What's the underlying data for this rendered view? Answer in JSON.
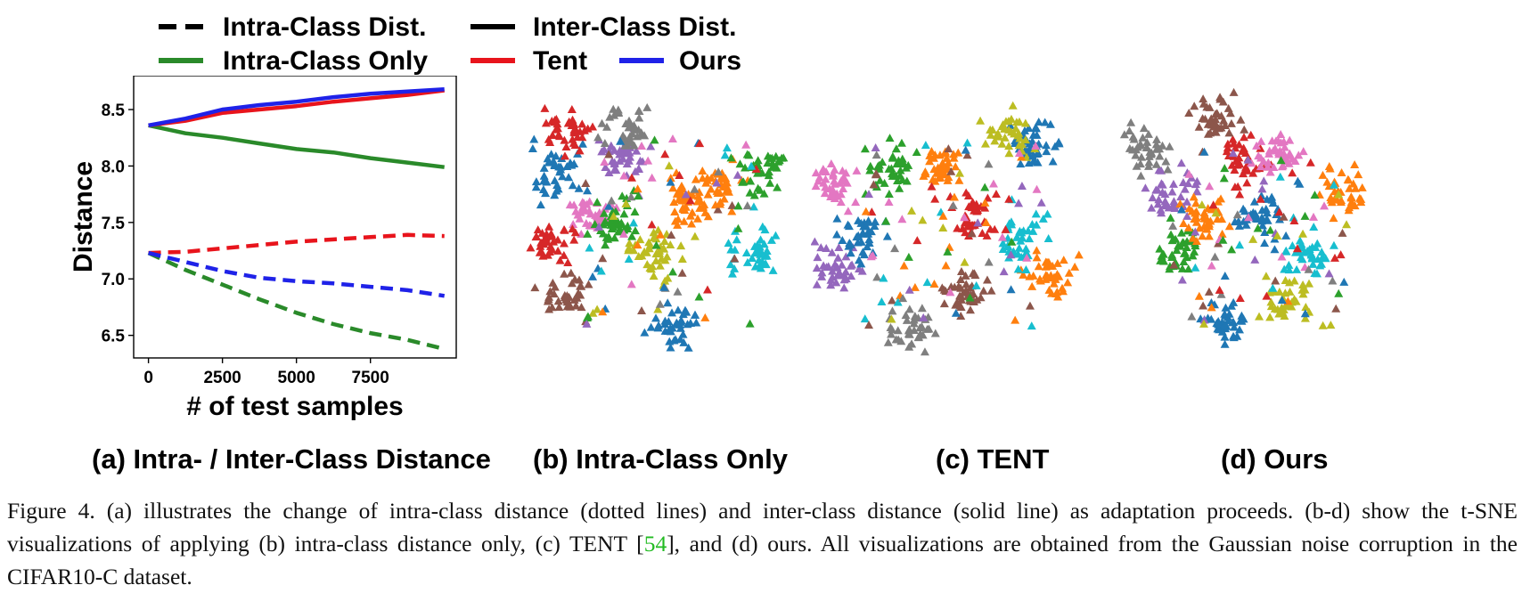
{
  "legend": {
    "intra_dist": "Intra-Class Dist.",
    "inter_dist": "Inter-Class Dist.",
    "intra_only": "Intra-Class Only",
    "tent": "Tent",
    "ours": "Ours"
  },
  "colors": {
    "intra_only": "#2a8a2a",
    "tent": "#e8141c",
    "ours": "#1f22e8",
    "tsne_palette": [
      "#1f77b4",
      "#ff7f0e",
      "#2ca02c",
      "#d62728",
      "#9467bd",
      "#8c564b",
      "#e377c2",
      "#7f7f7f",
      "#bcbd22",
      "#17becf"
    ]
  },
  "chart_data": {
    "type": "line",
    "xlabel": "# of test samples",
    "ylabel": "Distance",
    "xlim": [
      -500,
      10400
    ],
    "ylim": [
      6.3,
      8.8
    ],
    "xticks": [
      0,
      2500,
      5000,
      7500
    ],
    "yticks": [
      6.5,
      7.0,
      7.5,
      8.0,
      8.5
    ],
    "x": [
      0,
      1250,
      2500,
      3750,
      5000,
      6250,
      7500,
      8750,
      10000
    ],
    "series": [
      {
        "name": "Intra-Class Only",
        "style": "solid",
        "color": "#2a8a2a",
        "values": [
          8.36,
          8.29,
          8.25,
          8.2,
          8.15,
          8.12,
          8.07,
          8.03,
          7.99
        ]
      },
      {
        "name": "Tent",
        "style": "solid",
        "color": "#e8141c",
        "values": [
          8.36,
          8.4,
          8.47,
          8.5,
          8.53,
          8.57,
          8.6,
          8.63,
          8.67
        ]
      },
      {
        "name": "Ours",
        "style": "solid",
        "color": "#1f22e8",
        "values": [
          8.36,
          8.42,
          8.5,
          8.54,
          8.57,
          8.61,
          8.64,
          8.66,
          8.68
        ]
      },
      {
        "name": "Intra-Class Only",
        "style": "dashed",
        "color": "#2a8a2a",
        "values": [
          7.23,
          7.08,
          6.95,
          6.82,
          6.7,
          6.6,
          6.52,
          6.46,
          6.38
        ]
      },
      {
        "name": "Tent",
        "style": "dashed",
        "color": "#e8141c",
        "values": [
          7.23,
          7.24,
          7.27,
          7.3,
          7.33,
          7.35,
          7.37,
          7.39,
          7.38
        ]
      },
      {
        "name": "Ours",
        "style": "dashed",
        "color": "#1f22e8",
        "values": [
          7.23,
          7.15,
          7.07,
          7.01,
          6.98,
          6.96,
          6.93,
          6.9,
          6.85
        ]
      }
    ]
  },
  "subcaptions": {
    "a": "(a) Intra- / Inter-Class Distance",
    "b": "(b) Intra-Class Only",
    "c": "(c) TENT",
    "d": "(d) Ours"
  },
  "caption": {
    "part1": "Figure 4. (a) illustrates the change of intra-class distance (dotted lines) and inter-class distance (solid line) as adaptation proceeds. (b-d) show the t-SNE visualizations of applying (b) intra-class distance only, (c) TENT [",
    "cite": "54",
    "part2": "], and (d) ours. All visualizations are obtained from the Gaussian noise corruption in the CIFAR10-C dataset."
  }
}
